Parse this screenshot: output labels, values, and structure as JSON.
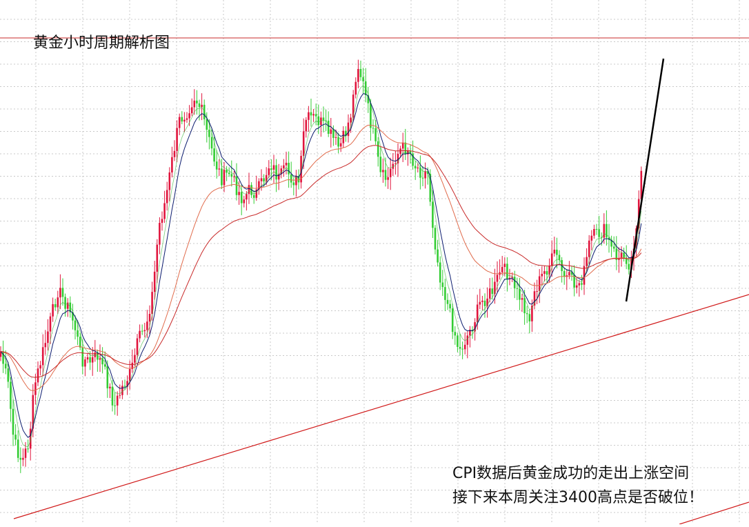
{
  "chart_data": {
    "type": "candlestick",
    "title": "黄金小时周期解析图",
    "annotations": [
      "CPI数据后黄金成功的走出上涨空间",
      "接下来本周关注3400高点是否破位！"
    ],
    "grid": true,
    "colors": {
      "up": "#e0143c",
      "down": "#33cc33",
      "ma_fast": "#0a1a6e",
      "ma_mid": "#e06a4a",
      "ma_slow": "#c82828",
      "trendline": "#d01818",
      "resistance": "#c82828",
      "projection": "#000000"
    }
  }
}
